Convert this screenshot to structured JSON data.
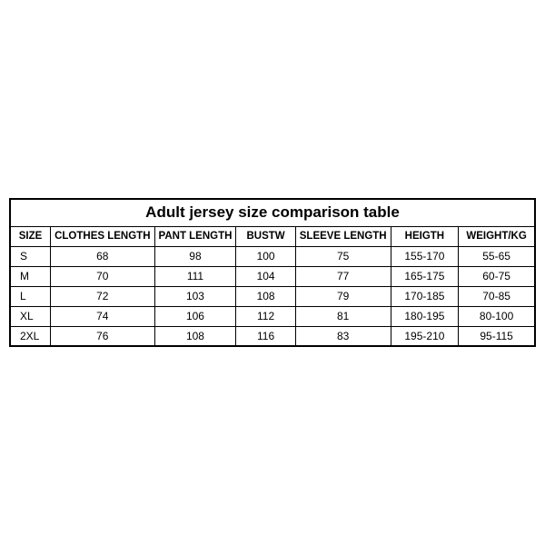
{
  "table": {
    "title": "Adult jersey size comparison table",
    "columns": [
      "SIZE",
      "CLOTHES LENGTH",
      "PANT LENGTH",
      "BUSTW",
      "SLEEVE LENGTH",
      "HEIGTH",
      "WEIGHT/KG"
    ],
    "rows": [
      [
        "S",
        "68",
        "98",
        "100",
        "75",
        "155-170",
        "55-65"
      ],
      [
        "M",
        "70",
        "111",
        "104",
        "77",
        "165-175",
        "60-75"
      ],
      [
        "L",
        "72",
        "103",
        "108",
        "79",
        "170-185",
        "70-85"
      ],
      [
        "XL",
        "74",
        "106",
        "112",
        "81",
        "180-195",
        "80-100"
      ],
      [
        "2XL",
        "76",
        "108",
        "116",
        "83",
        "195-210",
        "95-115"
      ]
    ],
    "border_color": "#000000",
    "background_color": "#ffffff",
    "text_color": "#000000",
    "title_fontsize": 17,
    "header_fontsize": 11.5,
    "cell_fontsize": 12
  }
}
